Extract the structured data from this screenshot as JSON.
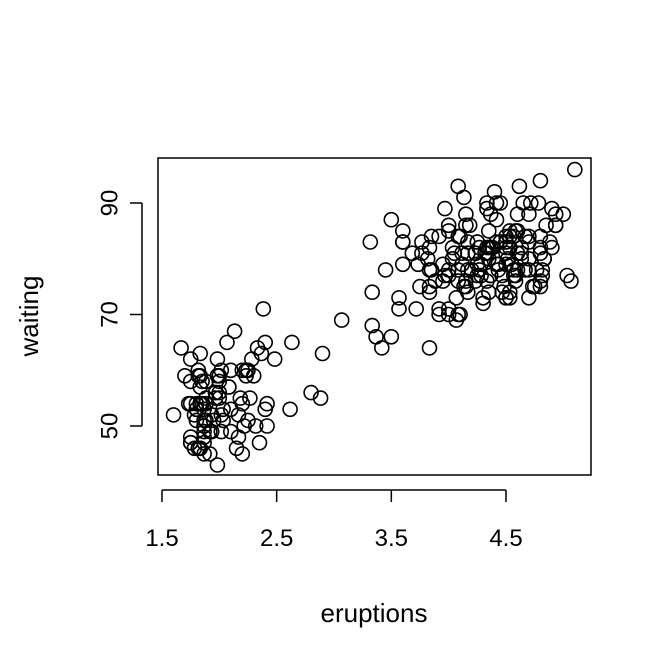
{
  "chart_data": {
    "type": "scatter",
    "title": "",
    "xlabel": "eruptions",
    "ylabel": "waiting",
    "xlim": [
      1.6,
      5.1
    ],
    "ylim": [
      43,
      96
    ],
    "xticks": [
      1.5,
      2.5,
      3.5,
      4.5
    ],
    "xtick_labels": [
      "1.5",
      "2.5",
      "3.5",
      "4.5"
    ],
    "yticks": [
      50,
      70,
      90
    ],
    "ytick_labels": [
      "50",
      "70",
      "90"
    ],
    "grid": false,
    "legend": "none",
    "marker": "open-circle",
    "marker_color": "#000000",
    "points": [
      [
        3.6,
        79
      ],
      [
        1.8,
        54
      ],
      [
        3.333,
        74
      ],
      [
        2.283,
        62
      ],
      [
        4.533,
        85
      ],
      [
        2.883,
        55
      ],
      [
        4.7,
        88
      ],
      [
        3.6,
        85
      ],
      [
        1.95,
        51
      ],
      [
        4.35,
        85
      ],
      [
        1.833,
        54
      ],
      [
        3.917,
        84
      ],
      [
        4.2,
        78
      ],
      [
        1.75,
        47
      ],
      [
        4.7,
        83
      ],
      [
        2.167,
        52
      ],
      [
        1.75,
        62
      ],
      [
        4.8,
        84
      ],
      [
        1.6,
        52
      ],
      [
        4.25,
        79
      ],
      [
        1.8,
        51
      ],
      [
        1.75,
        47
      ],
      [
        3.45,
        78
      ],
      [
        3.067,
        69
      ],
      [
        4.533,
        74
      ],
      [
        3.6,
        83
      ],
      [
        1.967,
        55
      ],
      [
        4.083,
        76
      ],
      [
        3.85,
        78
      ],
      [
        4.433,
        79
      ],
      [
        4.3,
        73
      ],
      [
        4.467,
        77
      ],
      [
        3.367,
        66
      ],
      [
        4.033,
        80
      ],
      [
        3.833,
        74
      ],
      [
        2.017,
        52
      ],
      [
        1.867,
        48
      ],
      [
        4.833,
        80
      ],
      [
        1.833,
        59
      ],
      [
        4.783,
        90
      ],
      [
        4.35,
        80
      ],
      [
        1.883,
        58
      ],
      [
        4.567,
        84
      ],
      [
        1.75,
        58
      ],
      [
        4.533,
        73
      ],
      [
        3.317,
        83
      ],
      [
        3.833,
        64
      ],
      [
        2.1,
        53
      ],
      [
        4.633,
        82
      ],
      [
        2.0,
        59
      ],
      [
        4.8,
        75
      ],
      [
        4.716,
        90
      ],
      [
        1.833,
        54
      ],
      [
        4.833,
        80
      ],
      [
        1.733,
        54
      ],
      [
        4.883,
        83
      ],
      [
        3.717,
        71
      ],
      [
        1.667,
        64
      ],
      [
        4.567,
        77
      ],
      [
        4.317,
        81
      ],
      [
        2.233,
        59
      ],
      [
        4.5,
        84
      ],
      [
        1.75,
        48
      ],
      [
        4.8,
        82
      ],
      [
        1.817,
        60
      ],
      [
        4.4,
        92
      ],
      [
        4.167,
        78
      ],
      [
        4.7,
        78
      ],
      [
        2.067,
        65
      ],
      [
        4.7,
        73
      ],
      [
        4.033,
        82
      ],
      [
        1.967,
        56
      ],
      [
        4.5,
        79
      ],
      [
        4.0,
        71
      ],
      [
        1.983,
        62
      ],
      [
        5.067,
        76
      ],
      [
        2.017,
        60
      ],
      [
        4.567,
        78
      ],
      [
        3.883,
        76
      ],
      [
        3.6,
        83
      ],
      [
        4.133,
        75
      ],
      [
        4.333,
        82
      ],
      [
        4.1,
        70
      ],
      [
        2.633,
        65
      ],
      [
        4.067,
        73
      ],
      [
        4.933,
        88
      ],
      [
        3.95,
        76
      ],
      [
        4.517,
        80
      ],
      [
        2.167,
        48
      ],
      [
        4.0,
        86
      ],
      [
        2.2,
        60
      ],
      [
        4.333,
        90
      ],
      [
        1.867,
        50
      ],
      [
        4.817,
        78
      ],
      [
        1.833,
        63
      ],
      [
        4.3,
        72
      ],
      [
        4.667,
        84
      ],
      [
        3.75,
        75
      ],
      [
        1.867,
        51
      ],
      [
        4.9,
        82
      ],
      [
        2.483,
        62
      ],
      [
        4.367,
        88
      ],
      [
        2.1,
        49
      ],
      [
        4.5,
        83
      ],
      [
        4.05,
        81
      ],
      [
        1.867,
        47
      ],
      [
        4.7,
        84
      ],
      [
        1.783,
        52
      ],
      [
        4.85,
        86
      ],
      [
        3.683,
        81
      ],
      [
        4.733,
        75
      ],
      [
        2.3,
        59
      ],
      [
        4.9,
        89
      ],
      [
        4.417,
        79
      ],
      [
        1.7,
        59
      ],
      [
        4.633,
        81
      ],
      [
        2.317,
        50
      ],
      [
        4.6,
        85
      ],
      [
        1.817,
        59
      ],
      [
        4.417,
        87
      ],
      [
        2.617,
        53
      ],
      [
        4.067,
        69
      ],
      [
        4.25,
        77
      ],
      [
        1.967,
        56
      ],
      [
        4.6,
        88
      ],
      [
        3.767,
        81
      ],
      [
        1.917,
        45
      ],
      [
        4.5,
        82
      ],
      [
        2.267,
        55
      ],
      [
        4.65,
        90
      ],
      [
        1.867,
        45
      ],
      [
        4.167,
        83
      ],
      [
        2.8,
        56
      ],
      [
        4.333,
        89
      ],
      [
        1.833,
        46
      ],
      [
        4.383,
        82
      ],
      [
        1.883,
        51
      ],
      [
        4.933,
        86
      ],
      [
        2.033,
        53
      ],
      [
        3.733,
        79
      ],
      [
        4.233,
        81
      ],
      [
        2.233,
        60
      ],
      [
        4.533,
        82
      ],
      [
        4.817,
        77
      ],
      [
        4.333,
        76
      ],
      [
        1.983,
        59
      ],
      [
        4.633,
        80
      ],
      [
        2.017,
        49
      ],
      [
        5.1,
        96
      ],
      [
        1.8,
        53
      ],
      [
        5.033,
        77
      ],
      [
        4.0,
        77
      ],
      [
        2.4,
        65
      ],
      [
        4.6,
        81
      ],
      [
        3.567,
        71
      ],
      [
        4.0,
        70
      ],
      [
        4.5,
        81
      ],
      [
        4.083,
        93
      ],
      [
        1.8,
        53
      ],
      [
        3.967,
        89
      ],
      [
        2.2,
        45
      ],
      [
        4.15,
        86
      ],
      [
        2.0,
        58
      ],
      [
        3.833,
        78
      ],
      [
        3.5,
        66
      ],
      [
        4.583,
        76
      ],
      [
        2.367,
        63
      ],
      [
        5.0,
        88
      ],
      [
        1.933,
        52
      ],
      [
        4.617,
        93
      ],
      [
        1.917,
        49
      ],
      [
        2.083,
        57
      ],
      [
        4.583,
        77
      ],
      [
        3.333,
        68
      ],
      [
        4.167,
        81
      ],
      [
        4.333,
        81
      ],
      [
        4.5,
        73
      ],
      [
        2.417,
        50
      ],
      [
        4.0,
        85
      ],
      [
        4.167,
        74
      ],
      [
        1.883,
        55
      ],
      [
        4.583,
        77
      ],
      [
        4.25,
        83
      ],
      [
        3.767,
        83
      ],
      [
        2.033,
        51
      ],
      [
        4.433,
        78
      ],
      [
        4.083,
        84
      ],
      [
        1.833,
        46
      ],
      [
        4.417,
        83
      ],
      [
        2.183,
        55
      ],
      [
        4.8,
        81
      ],
      [
        1.833,
        57
      ],
      [
        4.8,
        76
      ],
      [
        4.1,
        84
      ],
      [
        3.966,
        77
      ],
      [
        4.233,
        81
      ],
      [
        3.5,
        87
      ],
      [
        4.366,
        77
      ],
      [
        2.25,
        51
      ],
      [
        4.667,
        78
      ],
      [
        2.1,
        60
      ],
      [
        4.35,
        82
      ],
      [
        4.133,
        91
      ],
      [
        1.867,
        53
      ],
      [
        4.6,
        78
      ],
      [
        1.783,
        46
      ],
      [
        4.367,
        77
      ],
      [
        3.85,
        84
      ],
      [
        1.933,
        49
      ],
      [
        4.5,
        83
      ],
      [
        2.383,
        71
      ],
      [
        4.7,
        80
      ],
      [
        1.867,
        49
      ],
      [
        3.833,
        75
      ],
      [
        3.417,
        64
      ],
      [
        4.233,
        76
      ],
      [
        2.4,
        53
      ],
      [
        4.8,
        94
      ],
      [
        2.0,
        55
      ],
      [
        4.15,
        76
      ],
      [
        1.867,
        50
      ],
      [
        4.267,
        82
      ],
      [
        1.75,
        54
      ],
      [
        4.483,
        75
      ],
      [
        4.0,
        78
      ],
      [
        4.117,
        79
      ],
      [
        4.083,
        78
      ],
      [
        4.267,
        78
      ],
      [
        3.917,
        70
      ],
      [
        4.55,
        79
      ],
      [
        4.083,
        70
      ],
      [
        2.417,
        54
      ],
      [
        4.183,
        86
      ],
      [
        2.217,
        50
      ],
      [
        4.45,
        90
      ],
      [
        1.883,
        54
      ],
      [
        1.85,
        54
      ],
      [
        4.283,
        77
      ],
      [
        3.95,
        79
      ],
      [
        2.333,
        64
      ],
      [
        4.15,
        75
      ],
      [
        2.35,
        47
      ],
      [
        4.933,
        86
      ],
      [
        2.9,
        63
      ],
      [
        4.583,
        85
      ],
      [
        3.833,
        82
      ],
      [
        2.083,
        57
      ],
      [
        4.367,
        82
      ],
      [
        2.133,
        67
      ],
      [
        4.35,
        74
      ],
      [
        2.2,
        54
      ],
      [
        4.45,
        83
      ],
      [
        3.567,
        73
      ],
      [
        4.5,
        73
      ],
      [
        4.15,
        88
      ],
      [
        3.817,
        80
      ],
      [
        3.917,
        71
      ],
      [
        4.45,
        83
      ],
      [
        2.0,
        56
      ],
      [
        4.283,
        79
      ],
      [
        4.767,
        78
      ],
      [
        4.533,
        84
      ],
      [
        1.85,
        58
      ],
      [
        4.25,
        83
      ],
      [
        1.983,
        43
      ],
      [
        2.25,
        60
      ],
      [
        4.75,
        75
      ],
      [
        4.117,
        81
      ],
      [
        2.15,
        46
      ],
      [
        4.417,
        90
      ],
      [
        1.817,
        46
      ],
      [
        4.467,
        74
      ]
    ]
  }
}
